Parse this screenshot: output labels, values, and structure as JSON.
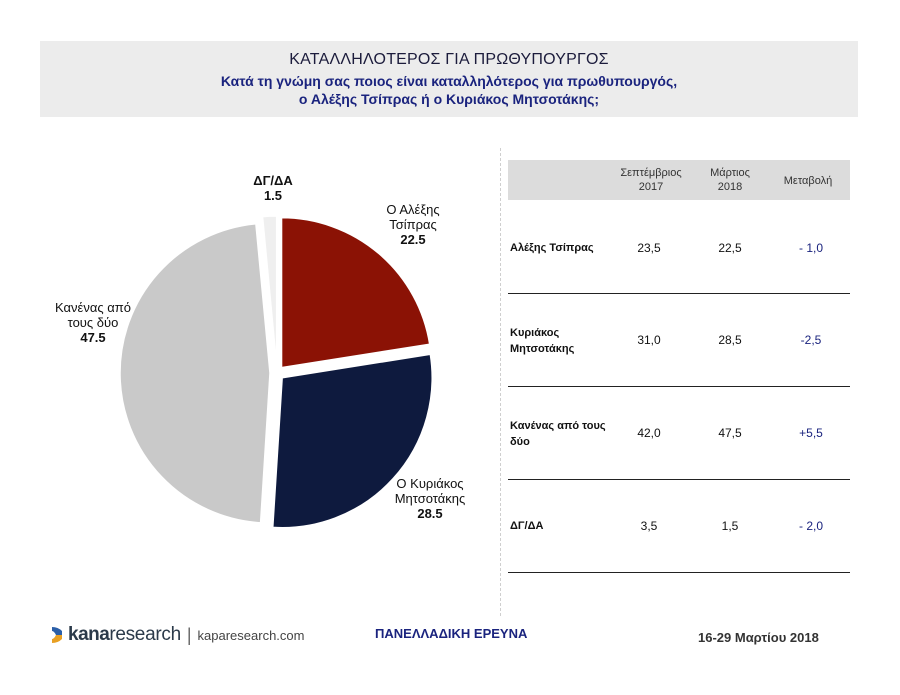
{
  "header": {
    "title": "ΚΑΤΑΛΛΗΛΟΤΕΡΟΣ ΓΙΑ ΠΡΩΘΥΠΟΥΡΓΟΣ",
    "subtitle_line1": "Κατά τη γνώμη σας ποιος είναι καταλληλότερος για πρωθυπουργός,",
    "subtitle_line2": "ο Αλέξης Τσίπρας ή ο Κυριάκος Μητσοτάκης;"
  },
  "chart_data": {
    "type": "pie",
    "slices": [
      {
        "line1": "Ο Αλέξης",
        "line2": "Τσίπρας",
        "value": 22.5,
        "value_label": "22.5",
        "color": "#8b1205"
      },
      {
        "line1": "Ο Κυριάκος",
        "line2": "Μητσοτάκης",
        "value": 28.5,
        "value_label": "28.5",
        "color": "#0e1a3e"
      },
      {
        "line1": "Κανένας από",
        "line2": "τους δύο",
        "value": 47.5,
        "value_label": "47.5",
        "color": "#c9c9c9"
      },
      {
        "line1": "ΔΓ/ΔΑ",
        "line2": "",
        "value": 1.5,
        "value_label": "1.5",
        "color": "#efefef"
      }
    ]
  },
  "table": {
    "headers": {
      "col1_line1": "Σεπτέμβριος",
      "col1_line2": "2017",
      "col2_line1": "Μάρτιος",
      "col2_line2": "2018",
      "col3": "Μεταβολή"
    },
    "rows": [
      {
        "name_line1": "Αλέξης Τσίπρας",
        "name_line2": "",
        "sep": "23,5",
        "mar": "22,5",
        "change": "- 1,0"
      },
      {
        "name_line1": "Κυριάκος",
        "name_line2": "Μητσοτάκης",
        "sep": "31,0",
        "mar": "28,5",
        "change": "-2,5"
      },
      {
        "name_line1": "Κανένας από τους",
        "name_line2": "δύο",
        "sep": "42,0",
        "mar": "47,5",
        "change": "+5,5"
      },
      {
        "name_line1": "ΔΓ/ΔΑ",
        "name_line2": "",
        "sep": "3,5",
        "mar": "1,5",
        "change": "- 2,0"
      }
    ]
  },
  "footer": {
    "logo_kana": "kana",
    "logo_research": "research",
    "separator": "|",
    "url": "kaparesearch.com",
    "survey": "ΠΑΝΕΛΛΑΔΙΚΗ ΕΡΕΥΝΑ",
    "date": "16-29 Μαρτίου 2018"
  },
  "colors": {
    "tsipras": "#8b1205",
    "mitsotakis": "#0e1a3e",
    "none": "#c9c9c9",
    "dkna": "#efefef",
    "accent_blue": "#1a237e"
  }
}
